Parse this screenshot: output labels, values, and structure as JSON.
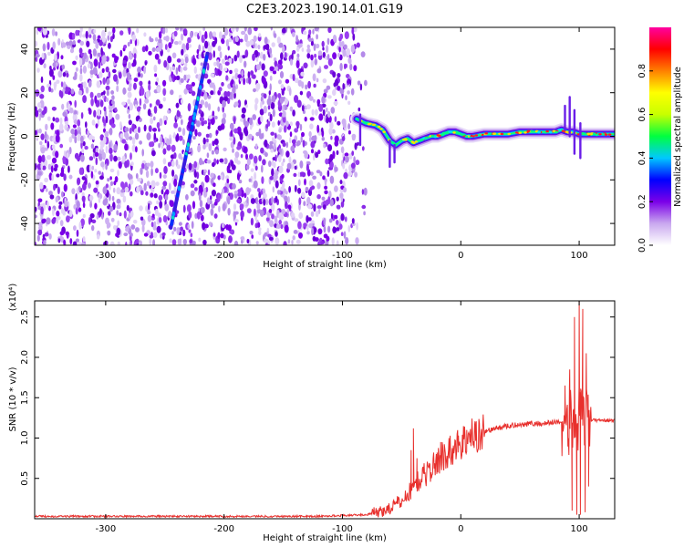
{
  "title": "C2E3.2023.190.14.01.G19",
  "chart_data": [
    {
      "type": "heatmap",
      "xlabel": "Height of straight line (km)",
      "ylabel": "Frequency (Hz)",
      "xlim": [
        -360,
        130
      ],
      "ylim": [
        -50,
        50
      ],
      "x_ticks": [
        -300,
        -200,
        -100,
        0,
        100
      ],
      "y_ticks": [
        -40,
        -20,
        0,
        20,
        40
      ],
      "noise_region_x": [
        -360,
        -100
      ],
      "noise_fade_x": [
        -100,
        -80
      ],
      "diagonal_streak": {
        "x": [
          -245,
          -214
        ],
        "y": [
          -42,
          38
        ]
      },
      "signal_track": {
        "x": [
          -88,
          -80,
          -72,
          -66,
          -60,
          -55,
          -50,
          -45,
          -40,
          -35,
          -30,
          -25,
          -20,
          -15,
          -10,
          -5,
          0,
          5,
          10,
          20,
          30,
          40,
          50,
          60,
          70,
          80,
          85,
          90,
          95,
          100,
          105,
          110,
          120,
          130
        ],
        "y": [
          8,
          6,
          5,
          3,
          -2,
          -4,
          -2,
          -1,
          -3,
          -2,
          -1,
          0,
          0,
          1,
          2,
          2,
          1,
          0,
          0,
          1,
          1,
          1,
          2,
          2,
          2,
          2,
          3,
          2,
          2,
          1,
          1,
          1,
          1,
          1
        ]
      },
      "colorbar": {
        "label": "Normalized spectral amplitude",
        "range": [
          0,
          1
        ],
        "ticks": [
          "0.0",
          "0.2",
          "0.4",
          "0.6",
          "0.8"
        ],
        "colors": [
          "#ffffff",
          "#c9a8ef",
          "#7b00e8",
          "#0000ff",
          "#00c8ff",
          "#00ff40",
          "#c8ff00",
          "#ffff00",
          "#ff8000",
          "#ff0000",
          "#ff00a0"
        ]
      }
    },
    {
      "type": "line",
      "xlabel": "Height of straight line (km)",
      "ylabel": "SNR (10 * v/v)",
      "scale_label": "(x10⁴)",
      "xlim": [
        -360,
        130
      ],
      "ylim": [
        0,
        2.7
      ],
      "x_ticks": [
        -300,
        -200,
        -100,
        0,
        100
      ],
      "y_ticks": [
        "0.5",
        "1.0",
        "1.5",
        "2.0",
        "2.5"
      ],
      "color": "#e8302d",
      "envelope": {
        "x": [
          -360,
          -120,
          -100,
          -80,
          -70,
          -60,
          -50,
          -45,
          -40,
          -35,
          -30,
          -25,
          -20,
          -15,
          -10,
          -5,
          0,
          10,
          20,
          30,
          40,
          50,
          60,
          70,
          80,
          85,
          90,
          95,
          100,
          105,
          110,
          120,
          130
        ],
        "y": [
          0.03,
          0.03,
          0.04,
          0.05,
          0.08,
          0.13,
          0.22,
          0.3,
          0.4,
          0.48,
          0.55,
          0.62,
          0.7,
          0.78,
          0.82,
          0.88,
          0.95,
          1.02,
          1.08,
          1.12,
          1.15,
          1.17,
          1.18,
          1.18,
          1.2,
          1.2,
          1.2,
          1.2,
          1.2,
          1.22,
          1.22,
          1.22,
          1.22
        ]
      },
      "spikes": [
        {
          "x": -40,
          "y": 1.12
        },
        {
          "x": -42,
          "y": 0.85
        },
        {
          "x": -37,
          "y": 0.75
        },
        {
          "x": -20,
          "y": 0.82
        },
        {
          "x": -17,
          "y": 0.95
        },
        {
          "x": -10,
          "y": 1.0
        },
        {
          "x": -2,
          "y": 1.03
        },
        {
          "x": 5,
          "y": 1.1
        },
        {
          "x": 12,
          "y": 1.2
        },
        {
          "x": 88,
          "y": 1.65
        },
        {
          "x": 92,
          "y": 1.85
        },
        {
          "x": 94,
          "y": 0.1
        },
        {
          "x": 96,
          "y": 2.5
        },
        {
          "x": 98,
          "y": 0.05
        },
        {
          "x": 100,
          "y": 2.7
        },
        {
          "x": 101,
          "y": 0.05
        },
        {
          "x": 103,
          "y": 2.6
        },
        {
          "x": 105,
          "y": 0.08
        },
        {
          "x": 106,
          "y": 2.05
        },
        {
          "x": 108,
          "y": 0.4
        }
      ]
    }
  ]
}
